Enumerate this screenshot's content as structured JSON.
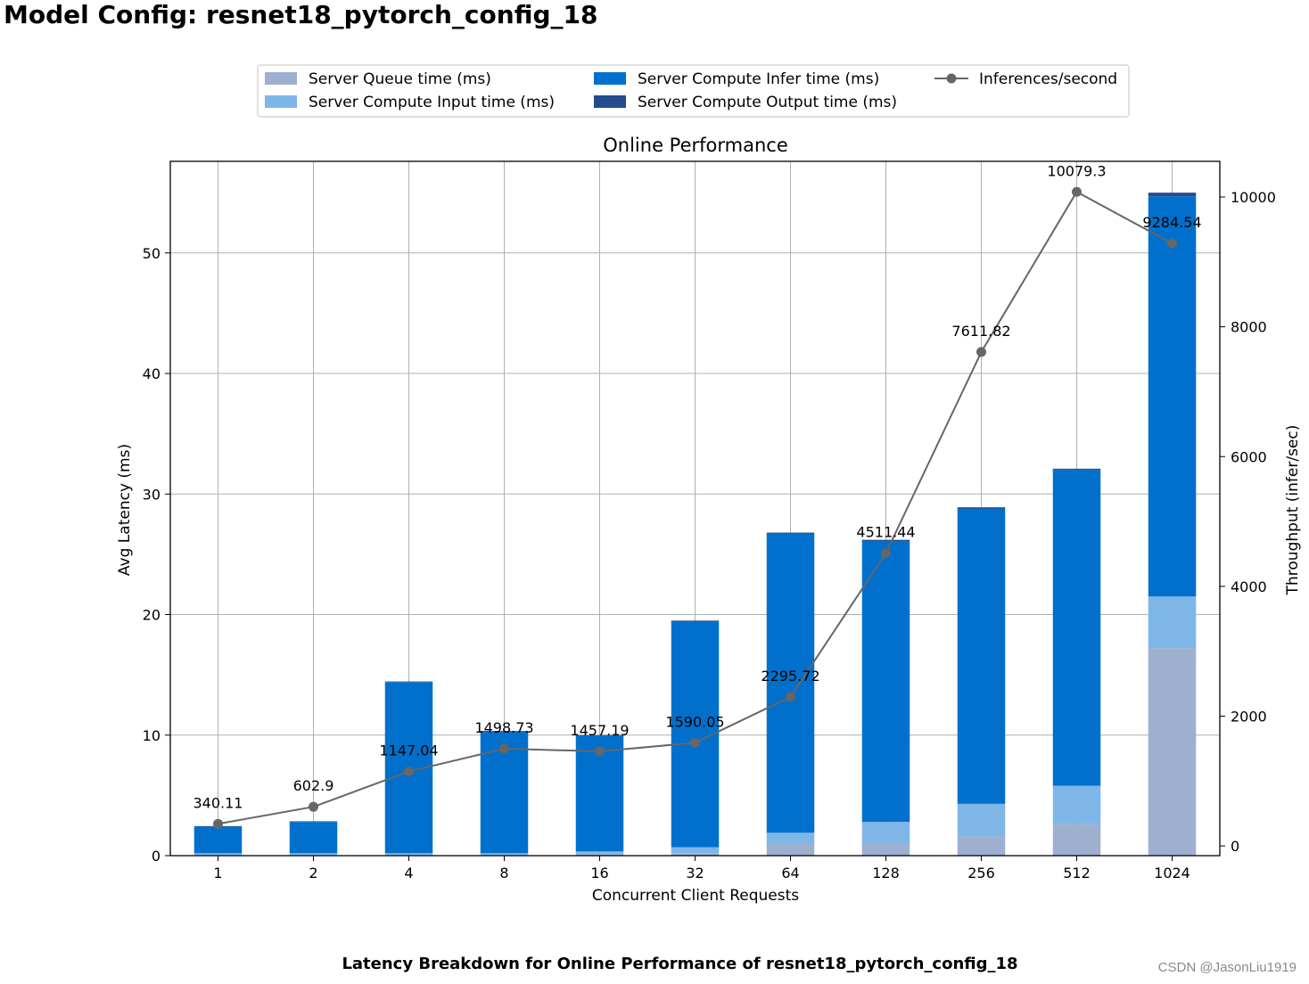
{
  "page": {
    "title": "Model Config: resnet18_pytorch_config_18",
    "caption": "Latency Breakdown for Online Performance of resnet18_pytorch_config_18",
    "watermark": "CSDN @JasonLiu1919"
  },
  "chart_data": {
    "type": "bar",
    "title": "Online Performance",
    "xlabel": "Concurrent Client Requests",
    "ylabel": "Avg Latency (ms)",
    "y2label": "Throughput (infer/sec)",
    "categories": [
      "1",
      "2",
      "4",
      "8",
      "16",
      "32",
      "64",
      "128",
      "256",
      "512",
      "1024"
    ],
    "ylim": [
      0,
      57.6
    ],
    "y2lim": [
      -150,
      10550
    ],
    "yticks": [
      0,
      10,
      20,
      30,
      40,
      50
    ],
    "y2ticks": [
      0,
      2000,
      4000,
      6000,
      8000,
      10000
    ],
    "grid": true,
    "legend_position": "top-center",
    "stacked": true,
    "series": [
      {
        "name": "Server Queue time (ms)",
        "color": "#9eb0cf",
        "values": [
          0.05,
          0.05,
          0.05,
          0.05,
          0.1,
          0.2,
          1.0,
          1.0,
          1.6,
          2.6,
          17.2
        ]
      },
      {
        "name": "Server Compute Input time (ms)",
        "color": "#7fb6e8",
        "values": [
          0.15,
          0.15,
          0.15,
          0.15,
          0.25,
          0.5,
          0.9,
          1.8,
          2.7,
          3.2,
          4.3
        ]
      },
      {
        "name": "Server Compute Infer time (ms)",
        "color": "#0070cc",
        "values": [
          2.2,
          2.6,
          14.2,
          10.1,
          9.6,
          18.7,
          24.8,
          23.3,
          24.5,
          26.2,
          33.2
        ]
      },
      {
        "name": "Server Compute Output time (ms)",
        "color": "#254b8c",
        "values": [
          0.05,
          0.05,
          0.05,
          0.05,
          0.05,
          0.1,
          0.1,
          0.1,
          0.1,
          0.1,
          0.3
        ]
      }
    ],
    "line_series": {
      "name": "Inferences/second",
      "color": "#666666",
      "values": [
        340.11,
        602.9,
        1147.04,
        1498.73,
        1457.19,
        1590.05,
        2295.72,
        4511.44,
        7611.82,
        10079.3,
        9284.54
      ],
      "labels": [
        "340.11",
        "602.9",
        "1147.04",
        "1498.73",
        "1457.19",
        "1590.05",
        "2295.72",
        "4511.44",
        "7611.82",
        "10079.3",
        "9284.54"
      ]
    }
  }
}
